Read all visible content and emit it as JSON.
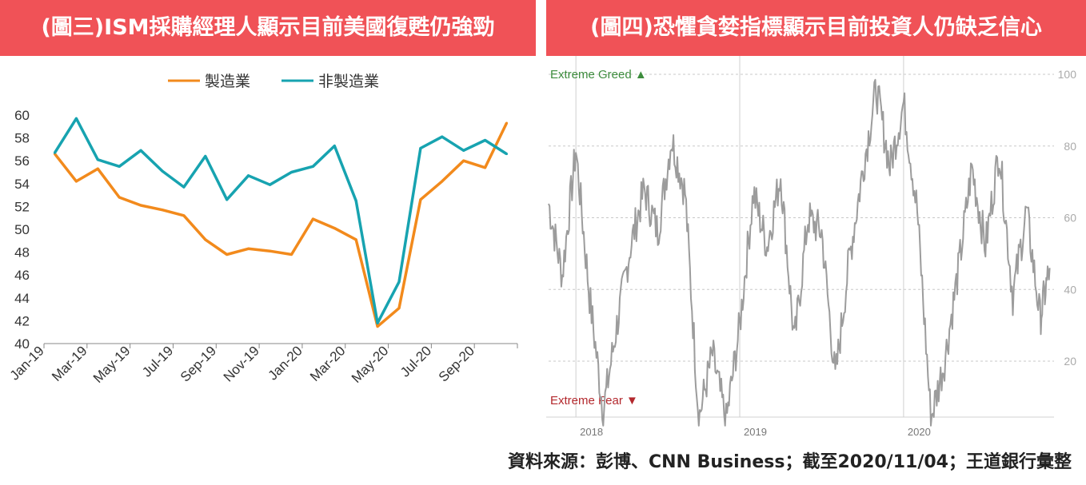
{
  "left_panel": {
    "title": "(圖三)ISM採購經理人顯示目前美國復甦仍強勁"
  },
  "right_panel": {
    "title": "(圖四)恐懼貪婪指標顯示目前投資人仍缺乏信心"
  },
  "source_note": "資料來源：彭博、CNN Business；截至2020/11/04；王道銀行彙整",
  "chart_data": [
    {
      "type": "line",
      "title": "",
      "xlabel": "",
      "ylabel": "",
      "ylim": [
        40,
        60
      ],
      "yticks": [
        40,
        42,
        44,
        46,
        48,
        50,
        52,
        54,
        56,
        58,
        60
      ],
      "x": [
        "Jan-19",
        "Feb-19",
        "Mar-19",
        "Apr-19",
        "May-19",
        "Jun-19",
        "Jul-19",
        "Aug-19",
        "Sep-19",
        "Oct-19",
        "Nov-19",
        "Dec-19",
        "Jan-20",
        "Feb-20",
        "Mar-20",
        "Apr-20",
        "May-20",
        "Jun-20",
        "Jul-20",
        "Aug-20",
        "Sep-20",
        "Oct-20"
      ],
      "xticklabels": [
        "Jan-19",
        "Mar-19",
        "May-19",
        "Jul-19",
        "Sep-19",
        "Nov-19",
        "Jan-20",
        "Mar-20",
        "May-20",
        "Jul-20",
        "Sep-20"
      ],
      "legend_position": "top",
      "grid": false,
      "series": [
        {
          "name": "製造業",
          "color": "#f28a1c",
          "values": [
            56.6,
            54.2,
            55.3,
            52.8,
            52.1,
            51.7,
            51.2,
            49.1,
            47.8,
            48.3,
            48.1,
            47.8,
            50.9,
            50.1,
            49.1,
            41.5,
            43.1,
            52.6,
            54.2,
            56.0,
            55.4,
            59.3
          ]
        },
        {
          "name": "非製造業",
          "color": "#17a3b0",
          "values": [
            56.7,
            59.7,
            56.1,
            55.5,
            56.9,
            55.1,
            53.7,
            56.4,
            52.6,
            54.7,
            53.9,
            55.0,
            55.5,
            57.3,
            52.5,
            41.8,
            45.4,
            57.1,
            58.1,
            56.9,
            57.8,
            56.6
          ]
        }
      ]
    },
    {
      "type": "line",
      "title": "",
      "ylim": [
        0,
        100
      ],
      "yticks": [
        20,
        40,
        60,
        80,
        100
      ],
      "year_labels": [
        "2018",
        "2019",
        "2020"
      ],
      "annotations": {
        "top": "Extreme Greed ▲",
        "bottom": "Extreme Fear ▼"
      },
      "colors": {
        "line": "#9c9c9c",
        "greed": "#3d8c3d",
        "fear": "#b3282d",
        "grid": "#c8c8c8"
      },
      "grid": true,
      "series": [
        {
          "name": "",
          "points": [
            [
              "2017-11",
              64
            ],
            [
              "2017-12",
              44
            ],
            [
              "2018-01",
              79
            ],
            [
              "2018-02",
              38
            ],
            [
              "2018-03",
              6
            ],
            [
              "2018-04",
              30
            ],
            [
              "2018-05",
              52
            ],
            [
              "2018-06",
              68
            ],
            [
              "2018-07",
              56
            ],
            [
              "2018-08",
              82
            ],
            [
              "2018-09",
              67
            ],
            [
              "2018-10",
              4
            ],
            [
              "2018-11",
              22
            ],
            [
              "2018-12",
              3
            ],
            [
              "2019-01",
              30
            ],
            [
              "2019-02",
              67
            ],
            [
              "2019-03",
              52
            ],
            [
              "2019-04",
              72
            ],
            [
              "2019-05",
              25
            ],
            [
              "2019-06",
              60
            ],
            [
              "2019-07",
              56
            ],
            [
              "2019-08",
              15
            ],
            [
              "2019-09",
              48
            ],
            [
              "2019-10",
              73
            ],
            [
              "2019-11",
              96
            ],
            [
              "2019-12",
              74
            ],
            [
              "2020-01",
              92
            ],
            [
              "2020-02",
              62
            ],
            [
              "2020-03",
              4
            ],
            [
              "2020-04",
              20
            ],
            [
              "2020-05",
              45
            ],
            [
              "2020-06",
              74
            ],
            [
              "2020-07",
              52
            ],
            [
              "2020-08",
              79
            ],
            [
              "2020-09",
              38
            ],
            [
              "2020-10",
              62
            ],
            [
              "2020-11",
              32
            ],
            [
              "2020-11",
              46
            ]
          ]
        }
      ]
    }
  ]
}
